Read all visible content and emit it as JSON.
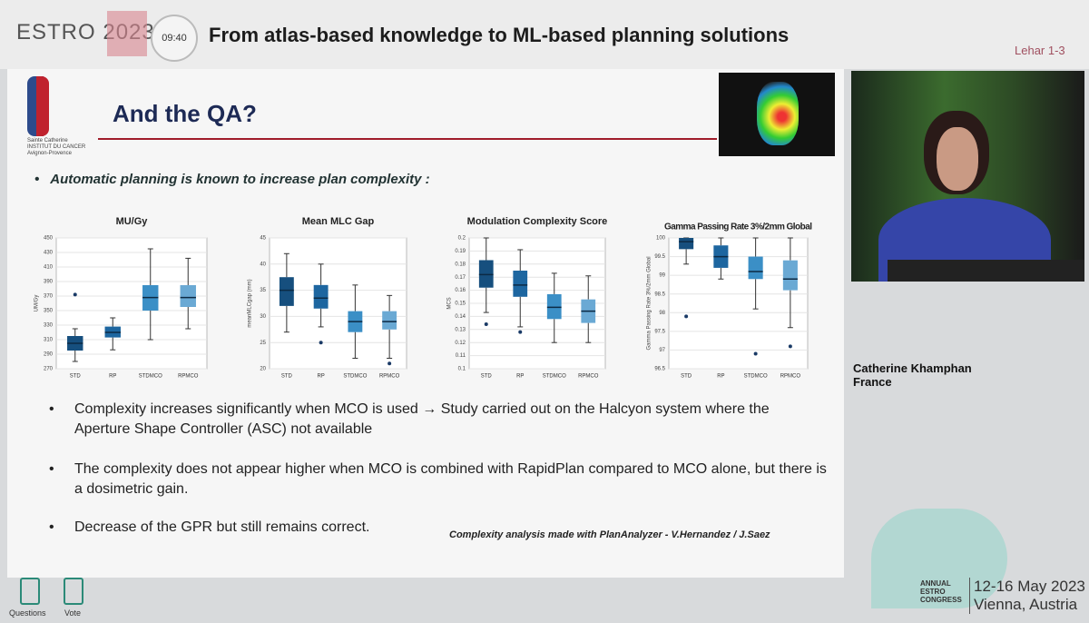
{
  "header": {
    "brand": "ESTRO 2023",
    "clock": "09:40",
    "title": "From atlas-based knowledge to ML-based planning solutions",
    "reference": "Lehar 1-3"
  },
  "slide": {
    "logo_lines": [
      "Sainte Catherine",
      "INSTITUT DU CANCER",
      "Avignon-Provence"
    ],
    "title": "And the QA?",
    "intro": "Automatic planning is known to increase plan complexity :",
    "bullets": [
      "Complexity increases significantly when MCO is used → Study carried out on the Halcyon system where the Aperture Shape Controller (ASC) not available",
      "The complexity does not appear higher when MCO is combined with RapidPlan compared to MCO alone, but there is a dosimetric gain.",
      "Decrease of the GPR but still remains correct."
    ],
    "footnote": "Complexity analysis made with PlanAnalyzer  - V.Hernandez / J.Saez"
  },
  "chart_data": [
    {
      "type": "box",
      "title": "MU/Gy",
      "ylabel": "UM/Gy",
      "categories": [
        "STD",
        "RP",
        "STDMCO",
        "RPMCO"
      ],
      "colors": [
        "#164f7e",
        "#1d66a0",
        "#3b8fc6",
        "#6aa9d4"
      ],
      "ylim": [
        270,
        450
      ],
      "yticks": [
        270,
        290,
        310,
        330,
        350,
        370,
        390,
        410,
        430,
        450
      ],
      "boxes": [
        {
          "whisker_low": 280,
          "q1": 295,
          "median": 305,
          "q3": 315,
          "whisker_high": 325,
          "outliers": [
            372
          ]
        },
        {
          "whisker_low": 296,
          "q1": 313,
          "median": 320,
          "q3": 328,
          "whisker_high": 340,
          "outliers": []
        },
        {
          "whisker_low": 310,
          "q1": 350,
          "median": 368,
          "q3": 385,
          "whisker_high": 435,
          "outliers": []
        },
        {
          "whisker_low": 325,
          "q1": 355,
          "median": 368,
          "q3": 385,
          "whisker_high": 422,
          "outliers": []
        }
      ]
    },
    {
      "type": "box",
      "title": "Mean MLC Gap",
      "ylabel": "meanMLCgap (mm)",
      "categories": [
        "STD",
        "RP",
        "STDMCO",
        "RPMCO"
      ],
      "colors": [
        "#164f7e",
        "#1d66a0",
        "#3b8fc6",
        "#6aa9d4"
      ],
      "ylim": [
        20,
        45
      ],
      "yticks": [
        20,
        25,
        30,
        35,
        40,
        45
      ],
      "boxes": [
        {
          "whisker_low": 27,
          "q1": 32,
          "median": 35,
          "q3": 37.5,
          "whisker_high": 42,
          "outliers": []
        },
        {
          "whisker_low": 28,
          "q1": 31.5,
          "median": 33.5,
          "q3": 36,
          "whisker_high": 40,
          "outliers": [
            25
          ]
        },
        {
          "whisker_low": 22,
          "q1": 27,
          "median": 29,
          "q3": 31,
          "whisker_high": 36,
          "outliers": []
        },
        {
          "whisker_low": 22,
          "q1": 27.5,
          "median": 29,
          "q3": 31,
          "whisker_high": 34,
          "outliers": [
            21
          ]
        }
      ]
    },
    {
      "type": "box",
      "title": "Modulation Complexity Score",
      "ylabel": "MCS",
      "categories": [
        "STD",
        "RP",
        "STDMCO",
        "RPMCO"
      ],
      "colors": [
        "#164f7e",
        "#1d66a0",
        "#3b8fc6",
        "#6aa9d4"
      ],
      "ylim": [
        0.1,
        0.2
      ],
      "yticks": [
        0.1,
        0.11,
        0.12,
        0.13,
        0.14,
        0.15,
        0.16,
        0.17,
        0.18,
        0.19,
        0.2
      ],
      "boxes": [
        {
          "whisker_low": 0.143,
          "q1": 0.162,
          "median": 0.172,
          "q3": 0.183,
          "whisker_high": 0.2,
          "outliers": [
            0.134
          ]
        },
        {
          "whisker_low": 0.132,
          "q1": 0.155,
          "median": 0.164,
          "q3": 0.175,
          "whisker_high": 0.191,
          "outliers": [
            0.128
          ]
        },
        {
          "whisker_low": 0.12,
          "q1": 0.138,
          "median": 0.147,
          "q3": 0.157,
          "whisker_high": 0.173,
          "outliers": []
        },
        {
          "whisker_low": 0.12,
          "q1": 0.135,
          "median": 0.144,
          "q3": 0.153,
          "whisker_high": 0.171,
          "outliers": []
        }
      ]
    },
    {
      "type": "box",
      "title": "Gamma Passing Rate 3%/2mm Global",
      "ylabel": "Gamma Passing Rate 3%/2mm Global",
      "categories": [
        "STD",
        "RP",
        "STDMCO",
        "RPMCO"
      ],
      "colors": [
        "#164f7e",
        "#1d66a0",
        "#3b8fc6",
        "#6aa9d4"
      ],
      "ylim": [
        96.5,
        100
      ],
      "yticks": [
        96.5,
        97,
        97.5,
        98,
        98.5,
        99,
        99.5,
        100
      ],
      "boxes": [
        {
          "whisker_low": 99.3,
          "q1": 99.7,
          "median": 99.9,
          "q3": 100,
          "whisker_high": 100,
          "outliers": [
            97.9
          ]
        },
        {
          "whisker_low": 98.9,
          "q1": 99.2,
          "median": 99.5,
          "q3": 99.8,
          "whisker_high": 100,
          "outliers": []
        },
        {
          "whisker_low": 98.1,
          "q1": 98.9,
          "median": 99.1,
          "q3": 99.5,
          "whisker_high": 100,
          "outliers": [
            96.9
          ]
        },
        {
          "whisker_low": 97.6,
          "q1": 98.6,
          "median": 98.9,
          "q3": 99.4,
          "whisker_high": 100,
          "outliers": [
            97.1
          ]
        }
      ]
    }
  ],
  "speaker": {
    "name": "Catherine Khamphan",
    "country": "France"
  },
  "congress": {
    "label_lines": [
      "ANNUAL",
      "ESTRO",
      "CONGRESS"
    ],
    "dates": "12-16 May 2023",
    "place": "Vienna, Austria"
  },
  "controls": {
    "questions": "Questions",
    "vote": "Vote"
  }
}
